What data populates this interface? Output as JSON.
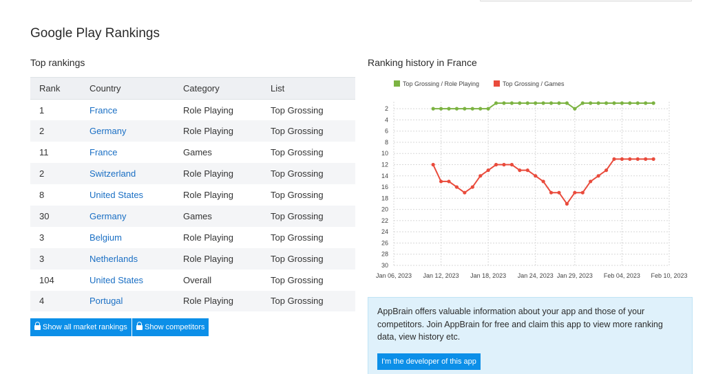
{
  "page": {
    "title": "Google Play Rankings"
  },
  "top_rankings": {
    "title": "Top rankings",
    "columns": [
      "Rank",
      "Country",
      "Category",
      "List"
    ],
    "rows": [
      {
        "rank": "1",
        "country": "France",
        "category": "Role Playing",
        "list": "Top Grossing"
      },
      {
        "rank": "2",
        "country": "Germany",
        "category": "Role Playing",
        "list": "Top Grossing"
      },
      {
        "rank": "11",
        "country": "France",
        "category": "Games",
        "list": "Top Grossing"
      },
      {
        "rank": "2",
        "country": "Switzerland",
        "category": "Role Playing",
        "list": "Top Grossing"
      },
      {
        "rank": "8",
        "country": "United States",
        "category": "Role Playing",
        "list": "Top Grossing"
      },
      {
        "rank": "30",
        "country": "Germany",
        "category": "Games",
        "list": "Top Grossing"
      },
      {
        "rank": "3",
        "country": "Belgium",
        "category": "Role Playing",
        "list": "Top Grossing"
      },
      {
        "rank": "3",
        "country": "Netherlands",
        "category": "Role Playing",
        "list": "Top Grossing"
      },
      {
        "rank": "104",
        "country": "United States",
        "category": "Overall",
        "list": "Top Grossing"
      },
      {
        "rank": "4",
        "country": "Portugal",
        "category": "Role Playing",
        "list": "Top Grossing"
      }
    ],
    "buttons": {
      "show_all": "Show all market rankings",
      "show_competitors": "Show competitors"
    }
  },
  "history": {
    "title": "Ranking history in France"
  },
  "chart_data": {
    "type": "line",
    "title": "",
    "xlabel": "",
    "ylabel": "",
    "y_inverted": true,
    "ylim": [
      1,
      30
    ],
    "y_ticks": [
      "2",
      "4",
      "6",
      "8",
      "10",
      "12",
      "14",
      "16",
      "18",
      "20",
      "22",
      "24",
      "26",
      "28",
      "30"
    ],
    "x_ticks": [
      "Jan 06, 2023",
      "Jan 12, 2023",
      "Jan 18, 2023",
      "Jan 24, 2023",
      "Jan 29, 2023",
      "Feb 04, 2023",
      "Feb 10, 2023"
    ],
    "grid": true,
    "legend_position": "top",
    "x": [
      "2023-01-11",
      "2023-01-12",
      "2023-01-13",
      "2023-01-14",
      "2023-01-15",
      "2023-01-16",
      "2023-01-17",
      "2023-01-18",
      "2023-01-19",
      "2023-01-20",
      "2023-01-21",
      "2023-01-22",
      "2023-01-23",
      "2023-01-24",
      "2023-01-25",
      "2023-01-26",
      "2023-01-27",
      "2023-01-28",
      "2023-01-29",
      "2023-01-30",
      "2023-01-31",
      "2023-02-01",
      "2023-02-02",
      "2023-02-03",
      "2023-02-04",
      "2023-02-05",
      "2023-02-06",
      "2023-02-07",
      "2023-02-08"
    ],
    "series": [
      {
        "name": "Top Grossing / Role Playing",
        "color": "#7cb342",
        "values": [
          2,
          2,
          2,
          2,
          2,
          2,
          2,
          2,
          1,
          1,
          1,
          1,
          1,
          1,
          1,
          1,
          1,
          1,
          2,
          1,
          1,
          1,
          1,
          1,
          1,
          1,
          1,
          1,
          1
        ]
      },
      {
        "name": "Top Grossing / Games",
        "color": "#e94b3c",
        "values": [
          12,
          15,
          15,
          16,
          17,
          16,
          14,
          13,
          12,
          12,
          12,
          13,
          13,
          14,
          15,
          17,
          17,
          19,
          17,
          17,
          15,
          14,
          13,
          11,
          11,
          11,
          11,
          11,
          11
        ]
      }
    ]
  },
  "info_box": {
    "text": "AppBrain offers valuable information about your app and those of your competitors. Join AppBrain for free and claim this app to view more ranking data, view history etc.",
    "button": "I'm the developer of this app"
  }
}
